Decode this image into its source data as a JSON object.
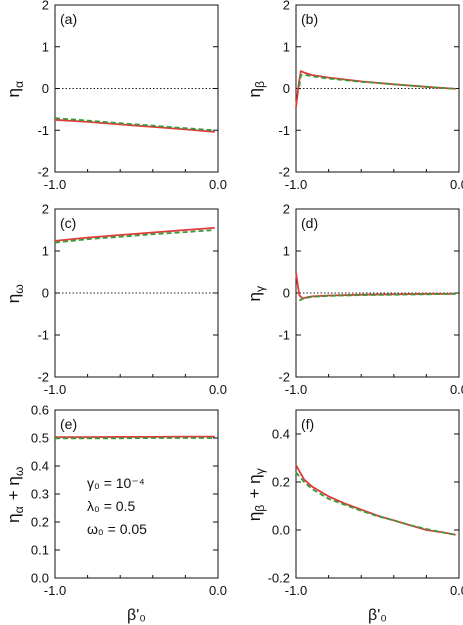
{
  "chart_data": [
    {
      "type": "line",
      "panel_label": "(a)",
      "ylabel": "η_α",
      "xlabel": "",
      "xlim": [
        -1.0,
        0.0
      ],
      "ylim": [
        -2,
        2
      ],
      "xticks": [
        "-1.0",
        "0.0"
      ],
      "yticks": [
        "-2",
        "-1",
        "0",
        "1",
        "2"
      ],
      "ytick_values": [
        -2,
        -1,
        0,
        1,
        2
      ],
      "zero_line": true,
      "series": [
        {
          "style": "solid",
          "color": "#e03a3a",
          "x": [
            -1.0,
            -0.8,
            -0.6,
            -0.4,
            -0.2,
            -0.02
          ],
          "y": [
            -0.75,
            -0.8,
            -0.86,
            -0.92,
            -0.98,
            -1.04
          ]
        },
        {
          "style": "dashed",
          "color": "#3a9a3a",
          "x": [
            -1.0,
            -0.8,
            -0.6,
            -0.4,
            -0.2,
            -0.02
          ],
          "y": [
            -0.71,
            -0.77,
            -0.83,
            -0.89,
            -0.95,
            -1.0
          ]
        }
      ]
    },
    {
      "type": "line",
      "panel_label": "(b)",
      "ylabel": "η_β",
      "xlabel": "",
      "xlim": [
        -1.0,
        0.0
      ],
      "ylim": [
        -2,
        2
      ],
      "xticks": [
        "-1.0",
        "0.0"
      ],
      "yticks": [
        "-2",
        "-1",
        "0",
        "1",
        "2"
      ],
      "ytick_values": [
        -2,
        -1,
        0,
        1,
        2
      ],
      "zero_line": true,
      "series": [
        {
          "style": "solid",
          "color": "#e03a3a",
          "x": [
            -1.0,
            -0.98,
            -0.97,
            -0.95,
            -0.9,
            -0.8,
            -0.6,
            -0.4,
            -0.2,
            -0.02
          ],
          "y": [
            -0.45,
            0.2,
            0.42,
            0.38,
            0.32,
            0.26,
            0.17,
            0.1,
            0.04,
            -0.01
          ]
        },
        {
          "style": "dashed",
          "color": "#3a9a3a",
          "x": [
            -0.98,
            -0.97,
            -0.95,
            -0.9,
            -0.8,
            -0.6,
            -0.4,
            -0.2,
            -0.02
          ],
          "y": [
            0.05,
            0.32,
            0.33,
            0.29,
            0.24,
            0.16,
            0.1,
            0.04,
            -0.01
          ]
        }
      ]
    },
    {
      "type": "line",
      "panel_label": "(c)",
      "ylabel": "η_ω",
      "xlabel": "",
      "xlim": [
        -1.0,
        0.0
      ],
      "ylim": [
        -2,
        2
      ],
      "xticks": [
        "-1.0",
        "0.0"
      ],
      "yticks": [
        "-2",
        "-1",
        "0",
        "1",
        "2"
      ],
      "ytick_values": [
        -2,
        -1,
        0,
        1,
        2
      ],
      "zero_line": true,
      "series": [
        {
          "style": "solid",
          "color": "#e03a3a",
          "x": [
            -1.0,
            -0.8,
            -0.6,
            -0.4,
            -0.2,
            -0.02
          ],
          "y": [
            1.24,
            1.32,
            1.38,
            1.44,
            1.5,
            1.55
          ]
        },
        {
          "style": "dashed",
          "color": "#3a9a3a",
          "x": [
            -1.0,
            -0.8,
            -0.6,
            -0.4,
            -0.2,
            -0.02
          ],
          "y": [
            1.2,
            1.28,
            1.34,
            1.4,
            1.45,
            1.5
          ]
        }
      ]
    },
    {
      "type": "line",
      "panel_label": "(d)",
      "ylabel": "η_γ",
      "xlabel": "",
      "xlim": [
        -1.0,
        0.0
      ],
      "ylim": [
        -2,
        2
      ],
      "xticks": [
        "-1.0",
        "0.0"
      ],
      "yticks": [
        "-2",
        "-1",
        "0",
        "1",
        "2"
      ],
      "ytick_values": [
        -2,
        -1,
        0,
        1,
        2
      ],
      "zero_line": true,
      "series": [
        {
          "style": "solid",
          "color": "#e03a3a",
          "x": [
            -1.0,
            -0.98,
            -0.96,
            -0.93,
            -0.9,
            -0.8,
            -0.6,
            -0.4,
            -0.2,
            -0.02
          ],
          "y": [
            0.48,
            -0.05,
            -0.13,
            -0.1,
            -0.08,
            -0.06,
            -0.04,
            -0.03,
            -0.02,
            -0.02
          ]
        },
        {
          "style": "dashed",
          "color": "#3a9a3a",
          "x": [
            -0.98,
            -0.96,
            -0.93,
            -0.9,
            -0.8,
            -0.6,
            -0.4,
            -0.2,
            -0.02
          ],
          "y": [
            -0.18,
            -0.14,
            -0.11,
            -0.09,
            -0.07,
            -0.05,
            -0.04,
            -0.03,
            -0.02
          ]
        }
      ]
    },
    {
      "type": "line",
      "panel_label": "(e)",
      "ylabel": "η_α + η_ω",
      "xlabel": "β'₀",
      "xlim": [
        -1.0,
        0.0
      ],
      "ylim": [
        0.0,
        0.6
      ],
      "xticks": [
        "-1.0",
        "0.0"
      ],
      "yticks": [
        "0.0",
        "0.1",
        "0.2",
        "0.3",
        "0.4",
        "0.5",
        "0.6"
      ],
      "ytick_values": [
        0.0,
        0.1,
        0.2,
        0.3,
        0.4,
        0.5,
        0.6
      ],
      "zero_line": false,
      "annotations": [
        "γ₀ = 10⁻⁴",
        "λ₀ = 0.5",
        "ω₀ = 0.05"
      ],
      "series": [
        {
          "style": "solid",
          "color": "#e03a3a",
          "x": [
            -1.0,
            -0.8,
            -0.6,
            -0.4,
            -0.2,
            -0.02
          ],
          "y": [
            0.503,
            0.503,
            0.504,
            0.504,
            0.505,
            0.505
          ]
        },
        {
          "style": "dashed",
          "color": "#3a9a3a",
          "x": [
            -1.0,
            -0.8,
            -0.6,
            -0.4,
            -0.2,
            -0.02
          ],
          "y": [
            0.499,
            0.499,
            0.499,
            0.5,
            0.5,
            0.5
          ]
        }
      ]
    },
    {
      "type": "line",
      "panel_label": "(f)",
      "ylabel": "η_β + η_γ",
      "xlabel": "β'₀",
      "xlim": [
        -1.0,
        0.0
      ],
      "ylim": [
        -0.2,
        0.5
      ],
      "xticks": [
        "-1.0",
        "0.0"
      ],
      "yticks": [
        "-0.2",
        "0.0",
        "0.2",
        "0.4"
      ],
      "ytick_values": [
        -0.2,
        0.0,
        0.2,
        0.4
      ],
      "zero_line": false,
      "series": [
        {
          "style": "solid",
          "color": "#e03a3a",
          "x": [
            -1.0,
            -0.95,
            -0.9,
            -0.8,
            -0.7,
            -0.6,
            -0.5,
            -0.4,
            -0.3,
            -0.2,
            -0.1,
            -0.02
          ],
          "y": [
            0.27,
            0.21,
            0.18,
            0.14,
            0.11,
            0.085,
            0.06,
            0.04,
            0.02,
            0.0,
            -0.01,
            -0.02
          ]
        },
        {
          "style": "dashed",
          "color": "#3a9a3a",
          "x": [
            -1.0,
            -0.95,
            -0.9,
            -0.8,
            -0.7,
            -0.6,
            -0.5,
            -0.4,
            -0.3,
            -0.2,
            -0.1,
            -0.02
          ],
          "y": [
            0.24,
            0.2,
            0.17,
            0.13,
            0.105,
            0.08,
            0.058,
            0.04,
            0.02,
            0.004,
            -0.01,
            -0.02
          ]
        }
      ]
    }
  ]
}
